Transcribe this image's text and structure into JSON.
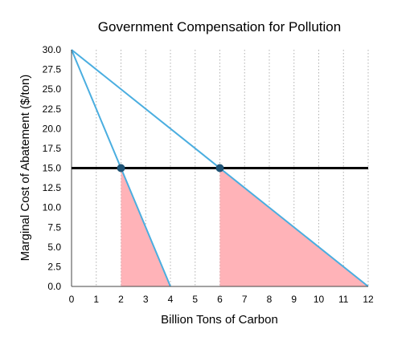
{
  "chart_data": {
    "type": "line",
    "title": "Government Compensation for Pollution",
    "xlabel": "Billion Tons of Carbon",
    "ylabel": "Marginal Cost of Abatement ($/ton)",
    "xlim": [
      0,
      12
    ],
    "ylim": [
      0,
      30
    ],
    "x_ticks": [
      "0",
      "1",
      "2",
      "3",
      "4",
      "5",
      "6",
      "7",
      "8",
      "9",
      "10",
      "11",
      "12"
    ],
    "y_ticks": [
      "0.0",
      "2.5",
      "5.0",
      "7.5",
      "10.0",
      "12.5",
      "15.0",
      "17.5",
      "20.0",
      "22.5",
      "25.0",
      "27.5",
      "30.0"
    ],
    "grid": "vertical-dotted",
    "series": [
      {
        "points": [
          [
            0,
            30
          ],
          [
            4,
            0
          ]
        ],
        "color": "#4aaee0"
      },
      {
        "points": [
          [
            0,
            30
          ],
          [
            12,
            0
          ]
        ],
        "color": "#4aaee0"
      }
    ],
    "horizontal_line": {
      "y": 15,
      "x": [
        0,
        12
      ],
      "color": "#000000"
    },
    "markers": [
      [
        2,
        15
      ],
      [
        6,
        15
      ]
    ],
    "marker_color": "#1e5375",
    "shaded_regions": [
      {
        "polygon": [
          [
            2,
            0
          ],
          [
            2,
            15
          ],
          [
            4,
            0
          ]
        ],
        "color": "#ffb3b8"
      },
      {
        "polygon": [
          [
            6,
            0
          ],
          [
            6,
            15
          ],
          [
            12,
            0
          ]
        ],
        "color": "#ffb3b8"
      }
    ]
  }
}
